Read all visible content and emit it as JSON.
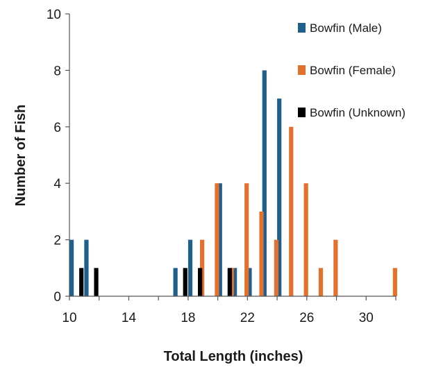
{
  "chart_data": {
    "type": "bar",
    "title": "",
    "xlabel": "Total Length (inches)",
    "ylabel": "Number of Fish",
    "x_ticks": [
      10,
      14,
      18,
      22,
      26,
      30
    ],
    "y_ticks": [
      0,
      2,
      4,
      6,
      8,
      10
    ],
    "xlim": [
      10,
      32
    ],
    "ylim": [
      0,
      10
    ],
    "grid": false,
    "legend_position": "top-right",
    "series": [
      {
        "name": "Bowfin (Male)",
        "color": "#1f5f8b",
        "points": [
          {
            "x": 10,
            "y": 2
          },
          {
            "x": 11,
            "y": 2
          },
          {
            "x": 17,
            "y": 1
          },
          {
            "x": 18,
            "y": 2
          },
          {
            "x": 20,
            "y": 4
          },
          {
            "x": 21,
            "y": 1
          },
          {
            "x": 22,
            "y": 1
          },
          {
            "x": 23,
            "y": 8
          },
          {
            "x": 24,
            "y": 7
          }
        ]
      },
      {
        "name": "Bowfin (Female)",
        "color": "#e2712e",
        "points": [
          {
            "x": 18,
            "y": 2
          },
          {
            "x": 19,
            "y": 4
          },
          {
            "x": 20,
            "y": 1
          },
          {
            "x": 21,
            "y": 4
          },
          {
            "x": 22,
            "y": 3
          },
          {
            "x": 23,
            "y": 2
          },
          {
            "x": 24,
            "y": 6
          },
          {
            "x": 25,
            "y": 4
          },
          {
            "x": 26,
            "y": 1
          },
          {
            "x": 27,
            "y": 2
          },
          {
            "x": 31,
            "y": 1
          }
        ]
      },
      {
        "name": "Bowfin (Unknown)",
        "color": "#000000",
        "points": [
          {
            "x": 10,
            "y": 1
          },
          {
            "x": 11,
            "y": 1
          },
          {
            "x": 17,
            "y": 1
          },
          {
            "x": 18,
            "y": 1
          },
          {
            "x": 20,
            "y": 1
          }
        ]
      }
    ]
  }
}
